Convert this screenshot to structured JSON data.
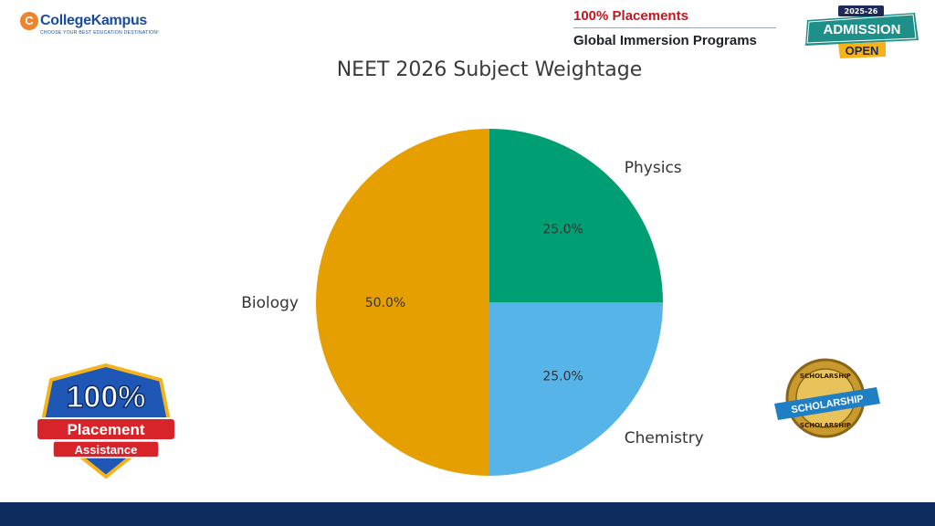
{
  "branding": {
    "logo_mark": "C",
    "logo_text": "CollegeKampus",
    "tagline": "CHOOSE YOUR BEST EDUCATION DESTINATION!",
    "promo_line1": "100% Placements",
    "promo_line2": "Global Immersion Programs",
    "admission_year": "2025-26",
    "admission_word1": "ADMISSION",
    "admission_word2": "OPEN",
    "placement_big": "100%",
    "placement_line1": "Placement",
    "placement_line2": "Assistance",
    "scholarship_ribbon": "SCHOLARSHIP",
    "scholarship_top": "SCHOLARSHIP",
    "scholarship_bottom": "SCHOLARSHIP"
  },
  "chart_data": {
    "type": "pie",
    "title": "NEET 2026 Subject Weightage",
    "slices": [
      {
        "label": "Physics",
        "value": 25.0,
        "pct_label": "25.0%",
        "color": "#009e73"
      },
      {
        "label": "Chemistry",
        "value": 25.0,
        "pct_label": "25.0%",
        "color": "#56b4e9"
      },
      {
        "label": "Biology",
        "value": 50.0,
        "pct_label": "50.0%",
        "color": "#e69f00"
      }
    ],
    "start_angle": "12 o'clock",
    "direction": "clockwise"
  },
  "colors": {
    "footer": "#0f2c5f",
    "brand_blue": "#1a4b9b",
    "brand_orange": "#f0822a",
    "promo_red": "#c4161c"
  }
}
